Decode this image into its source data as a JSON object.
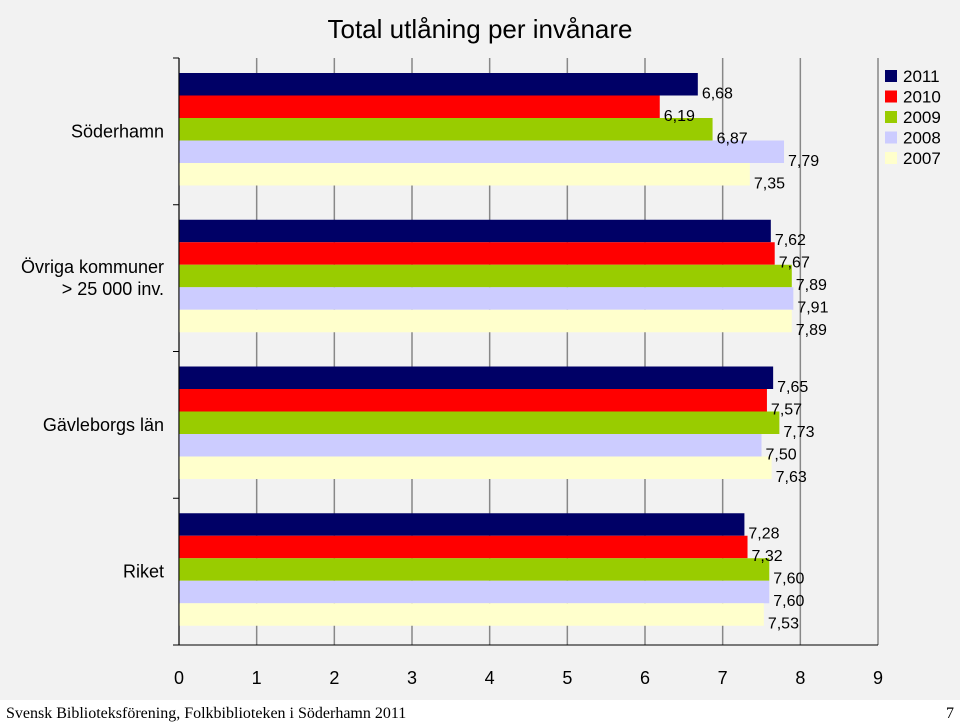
{
  "chart_data": {
    "type": "bar",
    "orientation": "horizontal",
    "title": "Total utlåning per invånare",
    "categories": [
      "Söderhamn",
      "Övriga kommuner\n> 25 000 inv.",
      "Gävleborgs län",
      "Riket"
    ],
    "series": [
      {
        "name": "2011",
        "color": "#000066",
        "values": [
          6.68,
          7.62,
          7.65,
          7.28
        ],
        "labels": [
          "6,68",
          "7,62",
          "7,65",
          "7,28"
        ]
      },
      {
        "name": "2010",
        "color": "#ff0000",
        "values": [
          6.19,
          7.67,
          7.57,
          7.32
        ],
        "labels": [
          "6,19",
          "7,67",
          "7,57",
          "7,32"
        ]
      },
      {
        "name": "2009",
        "color": "#99cc00",
        "values": [
          6.87,
          7.89,
          7.73,
          7.6
        ],
        "labels": [
          "6,87",
          "7,89",
          "7,73",
          "7,60"
        ]
      },
      {
        "name": "2008",
        "color": "#ccccff",
        "values": [
          7.79,
          7.91,
          7.5,
          7.6
        ],
        "labels": [
          "7,79",
          "7,91",
          "7,50",
          "7,60"
        ]
      },
      {
        "name": "2007",
        "color": "#ffffcc",
        "values": [
          7.35,
          7.89,
          7.63,
          7.53
        ],
        "labels": [
          "7,35",
          "7,89",
          "7,63",
          "7,53"
        ]
      }
    ],
    "xlim": [
      0,
      9
    ],
    "xticks": [
      "0",
      "1",
      "2",
      "3",
      "4",
      "5",
      "6",
      "7",
      "8",
      "9"
    ],
    "xlabel": "",
    "ylabel": "",
    "grid": true,
    "legend_position": "top-right"
  },
  "footer": {
    "source": "Svensk Biblioteksförening, Folkbiblioteken i Söderhamn 2011",
    "page": "7"
  }
}
